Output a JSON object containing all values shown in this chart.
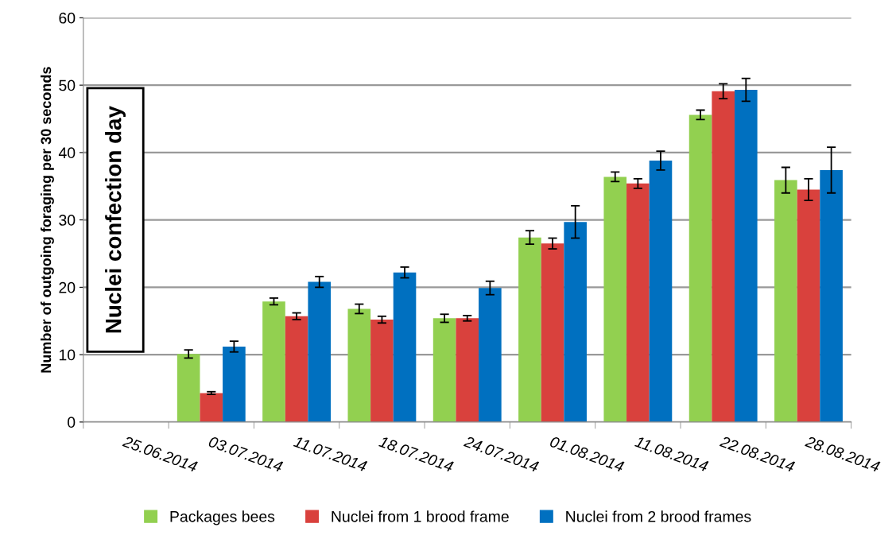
{
  "chart_data": {
    "type": "bar",
    "ylabel": "Number of outgoing foraging per 30 seconds",
    "categories": [
      "25.06.2014",
      "03.07.2014",
      "11.07.2014",
      "18.07.2014",
      "24.07.2014",
      "01.08.2014",
      "11.08.2014",
      "22.08.2014",
      "28.08.2014"
    ],
    "series": [
      {
        "name": "Packages bees",
        "color": "#92d050",
        "values": [
          null,
          10.1,
          17.9,
          16.8,
          15.4,
          27.4,
          36.4,
          45.6,
          35.9
        ],
        "errors": [
          null,
          0.6,
          0.5,
          0.7,
          0.6,
          1.0,
          0.7,
          0.7,
          1.9
        ]
      },
      {
        "name": "Nuclei from 1 brood frame",
        "color": "#d9413d",
        "values": [
          null,
          4.3,
          15.7,
          15.2,
          15.4,
          26.5,
          35.4,
          49.1,
          34.5
        ],
        "errors": [
          null,
          0.2,
          0.5,
          0.5,
          0.4,
          0.8,
          0.7,
          1.1,
          1.6
        ]
      },
      {
        "name": "Nuclei from 2 brood frames",
        "color": "#0070c0",
        "values": [
          null,
          11.2,
          20.8,
          22.2,
          19.9,
          29.7,
          38.8,
          49.3,
          37.4
        ],
        "errors": [
          null,
          0.8,
          0.8,
          0.8,
          1.0,
          2.4,
          1.4,
          1.7,
          3.4
        ]
      }
    ],
    "ylim": [
      0,
      60
    ],
    "yticks": [
      0,
      10,
      20,
      30,
      40,
      50,
      60
    ],
    "grid": "y",
    "legend": "bottom",
    "annotations": [
      "Nuclei confection day"
    ]
  }
}
